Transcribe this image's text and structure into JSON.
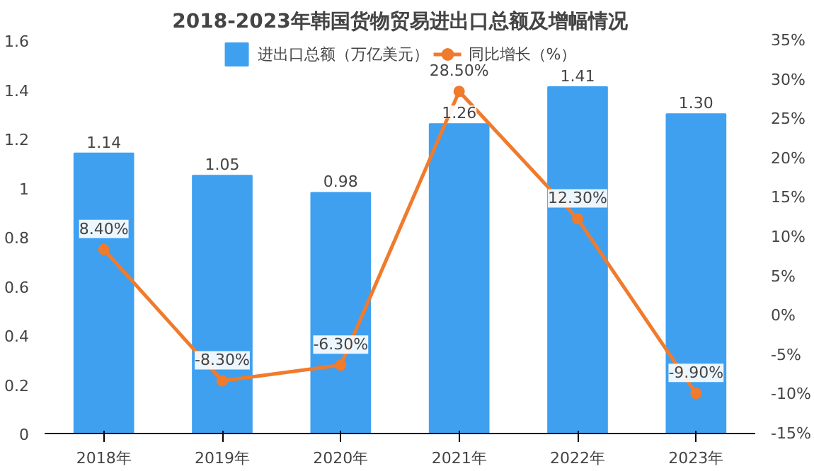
{
  "chart_data": {
    "type": "bar",
    "title": "2018-2023年韩国货物贸易进出口总额及增幅情况",
    "categories": [
      "2018年",
      "2019年",
      "2020年",
      "2021年",
      "2022年",
      "2023年"
    ],
    "series": [
      {
        "name": "进出口总额（万亿美元）",
        "color": "#3fa0f0",
        "values": [
          1.14,
          1.05,
          0.98,
          1.26,
          1.41,
          1.3
        ],
        "value_labels": [
          "1.14",
          "1.05",
          "0.98",
          "1.26",
          "1.41",
          "1.30"
        ]
      },
      {
        "name": "同比增长（%）",
        "type": "line",
        "axis": "y2",
        "color": "#f07b2c",
        "values": [
          8.4,
          -8.3,
          -6.3,
          28.5,
          12.3,
          -9.9
        ],
        "value_labels": [
          "8.40%",
          "-8.30%",
          "-6.30%",
          "28.50%",
          "12.30%",
          "-9.90%"
        ]
      }
    ],
    "ylim": [
      0,
      1.6
    ],
    "yticks": [
      0,
      0.2,
      0.4,
      0.6,
      0.8,
      1,
      1.2,
      1.4,
      1.6
    ],
    "y2lim": [
      -15,
      35
    ],
    "y2ticks": [
      {
        "value": -15,
        "label": "-15%"
      },
      {
        "value": -10,
        "label": "-10%"
      },
      {
        "value": -5,
        "label": "-5%"
      },
      {
        "value": 0,
        "label": "0%"
      },
      {
        "value": 5,
        "label": "5%"
      },
      {
        "value": 10,
        "label": "10%"
      },
      {
        "value": 15,
        "label": "15%"
      },
      {
        "value": 20,
        "label": "20%"
      },
      {
        "value": 25,
        "label": "25%"
      },
      {
        "value": 30,
        "label": "30%"
      },
      {
        "value": 35,
        "label": "35%"
      }
    ],
    "legend": "top",
    "marker": "circle",
    "grid": false
  }
}
